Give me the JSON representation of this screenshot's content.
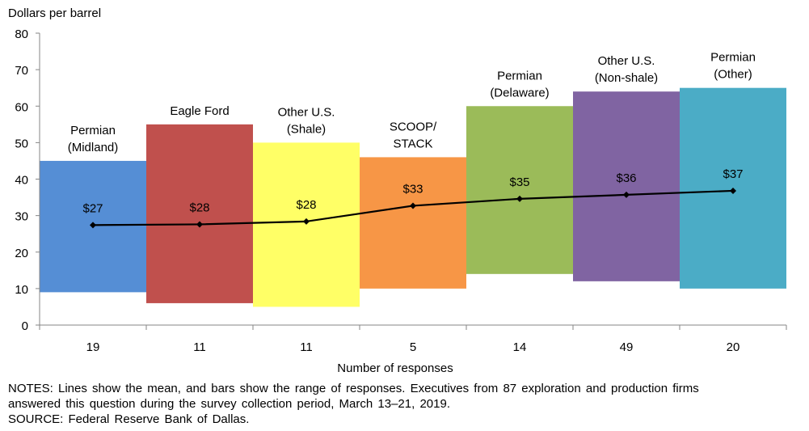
{
  "chart_data": {
    "type": "bar",
    "subtype": "floating-range-bars-with-mean-line",
    "title": "",
    "ylabel": "Dollars per barrel",
    "xlabel": "Number of responses",
    "ylim": [
      0,
      80
    ],
    "yticks": [
      0,
      10,
      20,
      30,
      40,
      50,
      60,
      70,
      80
    ],
    "grid": false,
    "categories": [
      "Permian (Midland)",
      "Eagle Ford",
      "Other U.S. (Shale)",
      "SCOOP/ STACK",
      "Permian (Delaware)",
      "Other U.S. (Non-shale)",
      "Permian (Other)"
    ],
    "category_label_lines": [
      [
        "Permian",
        "(Midland)"
      ],
      [
        "Eagle Ford"
      ],
      [
        "Other U.S.",
        "(Shale)"
      ],
      [
        "SCOOP/",
        "STACK"
      ],
      [
        "Permian",
        "(Delaware)"
      ],
      [
        "Other U.S.",
        "(Non-shale)"
      ],
      [
        "Permian",
        "(Other)"
      ]
    ],
    "responses": [
      "19",
      "11",
      "11",
      "5",
      "14",
      "49",
      "20"
    ],
    "series": [
      {
        "name": "Range of responses (low)",
        "values": [
          9,
          6,
          5,
          10,
          14,
          12,
          10
        ]
      },
      {
        "name": "Range of responses (high)",
        "values": [
          45,
          55,
          50,
          46,
          60,
          64,
          65
        ]
      },
      {
        "name": "Mean",
        "values": [
          27.4,
          27.6,
          28.4,
          32.7,
          34.6,
          35.7,
          36.8
        ]
      }
    ],
    "mean_labels": [
      "$27",
      "$28",
      "$28",
      "$33",
      "$35",
      "$36",
      "$37"
    ],
    "bar_colors": [
      "#558ED5",
      "#C0504D",
      "#FFFF66",
      "#F79646",
      "#9BBB59",
      "#8064A2",
      "#4BACC6"
    ],
    "line_color": "#000000",
    "legend": "none"
  },
  "notes": {
    "line1": "NOTES: Lines show the mean, and bars show the range of responses. Executives from 87 exploration and production firms",
    "line2": "answered this question during the survey collection period, March 13–21, 2019.",
    "line3": "SOURCE: Federal Reserve Bank of Dallas."
  }
}
